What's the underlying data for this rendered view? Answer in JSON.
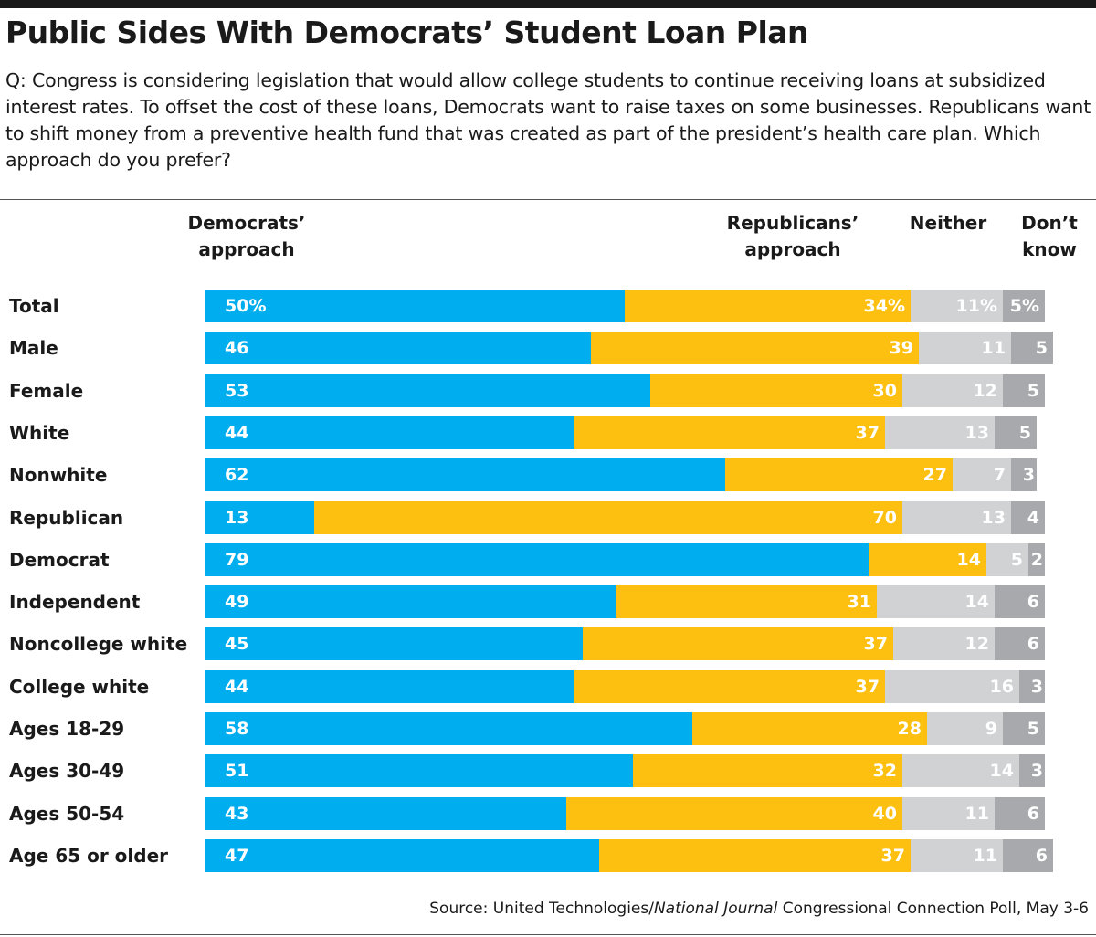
{
  "title": "Public Sides With Democrats’ Student Loan Plan",
  "question": "Q: Congress is considering legislation that would allow college students to continue receiving loans at subsidized interest rates. To offset the cost of these loans, Democrats want to raise taxes on some businesses. Republicans want to shift money from a preventive health fund that was created as part of the president’s health care plan. Which approach do you prefer?",
  "source": {
    "prefix": "Source: United Technologies/",
    "italic": "National Journal",
    "suffix": " Congressional Connection Poll, May 3-6"
  },
  "colors": {
    "democrats": "#00aeef",
    "republicans": "#fdc010",
    "neither": "#d1d2d4",
    "dont_know": "#a7a9ac"
  },
  "chart_data": {
    "type": "bar",
    "stacked": true,
    "orientation": "horizontal",
    "grid": false,
    "legend": "column headers above bars",
    "headers": [
      {
        "line1": "Democrats’",
        "line2": "approach"
      },
      {
        "line1": "Republicans’",
        "line2": "approach"
      },
      {
        "line1": "Neither",
        "line2": ""
      },
      {
        "line1": "Don’t",
        "line2": "know"
      }
    ],
    "series": [
      {
        "name": "Democrats’ approach",
        "color": "#00aeef"
      },
      {
        "name": "Republicans’ approach",
        "color": "#fdc010"
      },
      {
        "name": "Neither",
        "color": "#d1d2d4"
      },
      {
        "name": "Don’t know",
        "color": "#a7a9ac"
      }
    ],
    "rows": [
      {
        "label": "Total",
        "values": [
          50,
          34,
          11,
          5
        ],
        "labels": [
          "50%",
          "34%",
          "11%",
          "5%"
        ]
      },
      {
        "label": "Male",
        "values": [
          46,
          39,
          11,
          5
        ],
        "labels": [
          "46",
          "39",
          "11",
          "5"
        ]
      },
      {
        "label": "Female",
        "values": [
          53,
          30,
          12,
          5
        ],
        "labels": [
          "53",
          "30",
          "12",
          "5"
        ]
      },
      {
        "label": "White",
        "values": [
          44,
          37,
          13,
          5
        ],
        "labels": [
          "44",
          "37",
          "13",
          "5"
        ]
      },
      {
        "label": "Nonwhite",
        "values": [
          62,
          27,
          7,
          3
        ],
        "labels": [
          "62",
          "27",
          "7",
          "3"
        ]
      },
      {
        "label": "Republican",
        "values": [
          13,
          70,
          13,
          4
        ],
        "labels": [
          "13",
          "70",
          "13",
          "4"
        ]
      },
      {
        "label": "Democrat",
        "values": [
          79,
          14,
          5,
          2
        ],
        "labels": [
          "79",
          "14",
          "5",
          "2"
        ]
      },
      {
        "label": "Independent",
        "values": [
          49,
          31,
          14,
          6
        ],
        "labels": [
          "49",
          "31",
          "14",
          "6"
        ]
      },
      {
        "label": "Noncollege white",
        "values": [
          45,
          37,
          12,
          6
        ],
        "labels": [
          "45",
          "37",
          "12",
          "6"
        ]
      },
      {
        "label": "College white",
        "values": [
          44,
          37,
          16,
          3
        ],
        "labels": [
          "44",
          "37",
          "16",
          "3"
        ]
      },
      {
        "label": "Ages 18-29",
        "values": [
          58,
          28,
          9,
          5
        ],
        "labels": [
          "58",
          "28",
          "9",
          "5"
        ]
      },
      {
        "label": "Ages 30-49",
        "values": [
          51,
          32,
          14,
          3
        ],
        "labels": [
          "51",
          "32",
          "14",
          "3"
        ]
      },
      {
        "label": "Ages 50-54",
        "values": [
          43,
          40,
          11,
          6
        ],
        "labels": [
          "43",
          "40",
          "11",
          "6"
        ]
      },
      {
        "label": "Age 65 or older",
        "values": [
          47,
          37,
          11,
          6
        ],
        "labels": [
          "47",
          "37",
          "11",
          "6"
        ]
      }
    ]
  }
}
